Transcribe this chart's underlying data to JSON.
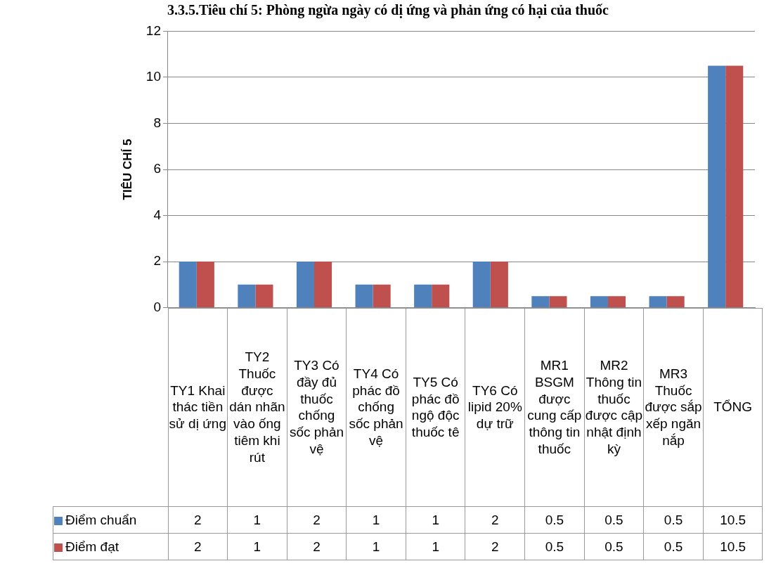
{
  "chart_data": {
    "type": "bar",
    "title": "3.3.5.Tiêu chí 5: Phòng ngừa ngày có dị ứng và phản ứng có hại của thuốc",
    "ylabel": "TIÊU CHÍ 5",
    "categories": [
      "TY1 Khai thác tiền sử dị ứng",
      "TY2 Thuốc được dán nhãn vào ống tiêm khi rút",
      "TY3 Có đầy đủ thuốc chống sốc phản vệ",
      "TY4 Có phác đồ chống sốc phản vệ",
      "TY5 Có phác đồ ngộ độc thuốc tê",
      "TY6 Có lipid 20% dự trữ",
      "MR1 BSGM được cung cấp thông tin thuốc",
      "MR2 Thông tin thuốc được cập nhật định kỳ",
      "MR3 Thuốc được sắp xếp ngăn nắp",
      "TỔNG"
    ],
    "series": [
      {
        "name": "Điểm chuẩn",
        "color": "#4f81bd",
        "values": [
          2,
          1,
          2,
          1,
          1,
          2,
          0.5,
          0.5,
          0.5,
          10.5
        ]
      },
      {
        "name": "Điểm đạt",
        "color": "#c0504d",
        "values": [
          2,
          1,
          2,
          1,
          1,
          2,
          0.5,
          0.5,
          0.5,
          10.5
        ]
      }
    ],
    "ylim": [
      0,
      12
    ],
    "yticks": [
      0,
      2,
      4,
      6,
      8,
      10,
      12
    ],
    "grid": "y",
    "legend": "bottom",
    "data_labels": true
  }
}
